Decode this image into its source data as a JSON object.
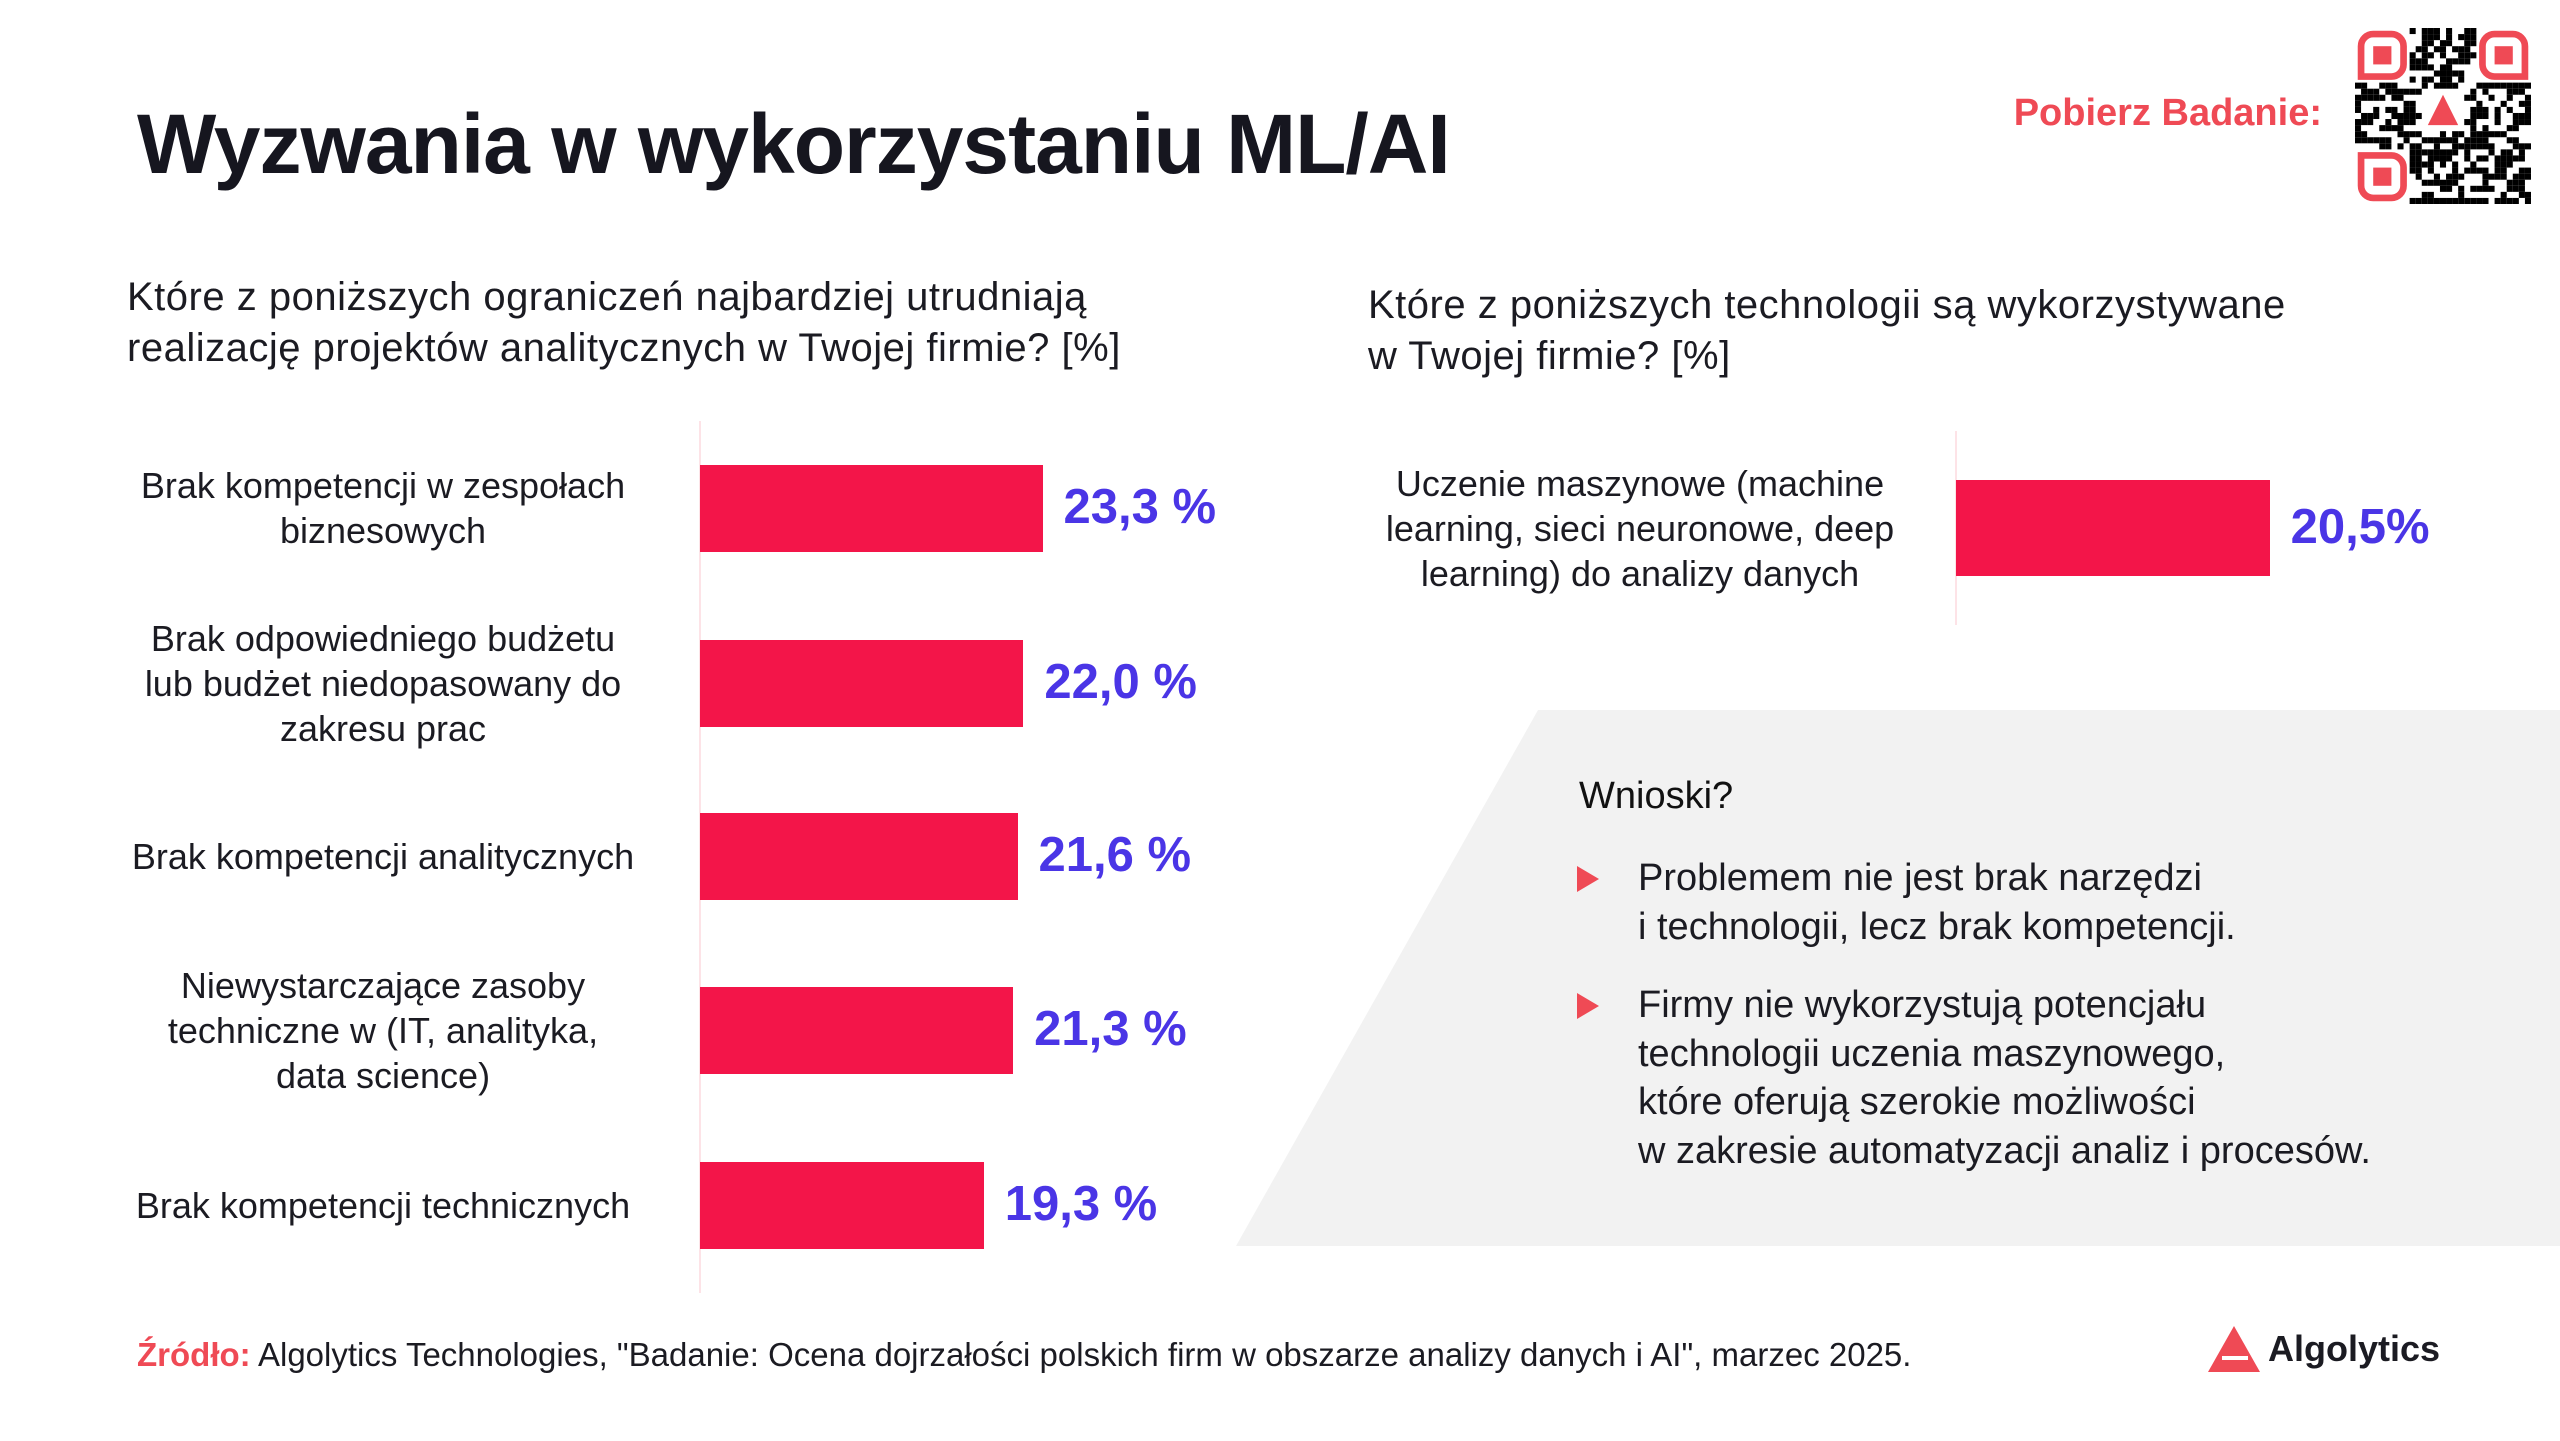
{
  "title": "Wyzwania w wykorzystaniu ML/AI",
  "download": {
    "label": "Pobierz Badanie:",
    "qr_icon": "qr-code-icon"
  },
  "colors": {
    "bar": "#f31549",
    "value": "#4a35e6",
    "accent": "#ef4a55",
    "panel": "#f2f2f2"
  },
  "chart_data": [
    {
      "type": "bar",
      "orientation": "horizontal",
      "title": "Które z poniższych ograniczeń najbardziej utrudniają\nrealizację projektów analitycznych w Twojej firmie? [%]",
      "categories": [
        "Brak kompetencji w zespołach\nbiznesowych",
        "Brak odpowiedniego budżetu\nlub budżet niedopasowany do\nzakresu prac",
        "Brak kompetencji analitycznych",
        "Niewystarczające zasoby\ntechniczne w (IT, analityka,\ndata science)",
        "Brak kompetencji technicznych"
      ],
      "values": [
        23.3,
        22.0,
        21.6,
        21.3,
        19.3
      ],
      "data_labels": [
        "23,3 %",
        "22,0 %",
        "21,6 %",
        "21,3 %",
        "19,3 %"
      ],
      "grid": false
    },
    {
      "type": "bar",
      "orientation": "horizontal",
      "title": "Które z poniższych technologii są wykorzystywane\nw Twojej firmie? [%]",
      "categories": [
        "Uczenie maszynowe (machine\nlearning, sieci neuronowe, deep\nlearning) do analizy danych"
      ],
      "values": [
        20.5
      ],
      "data_labels": [
        "20,5%"
      ],
      "grid": false
    }
  ],
  "conclusions": {
    "title": "Wnioski?",
    "items": [
      "Problemem nie jest brak narzędzi\ni technologii, lecz brak kompetencji.",
      "Firmy nie wykorzystują potencjału\ntechnologii uczenia maszynowego,\nktóre oferują szerokie możliwości\nw zakresie automatyzacji analiz i procesów."
    ]
  },
  "footer": {
    "source_label": "Źródło:",
    "source_text": " Algolytics Technologies, \"Badanie: Ocena dojrzałości polskich firm w obszarze analizy danych i AI\", marzec 2025."
  },
  "logo": {
    "text": "Algolytics"
  }
}
